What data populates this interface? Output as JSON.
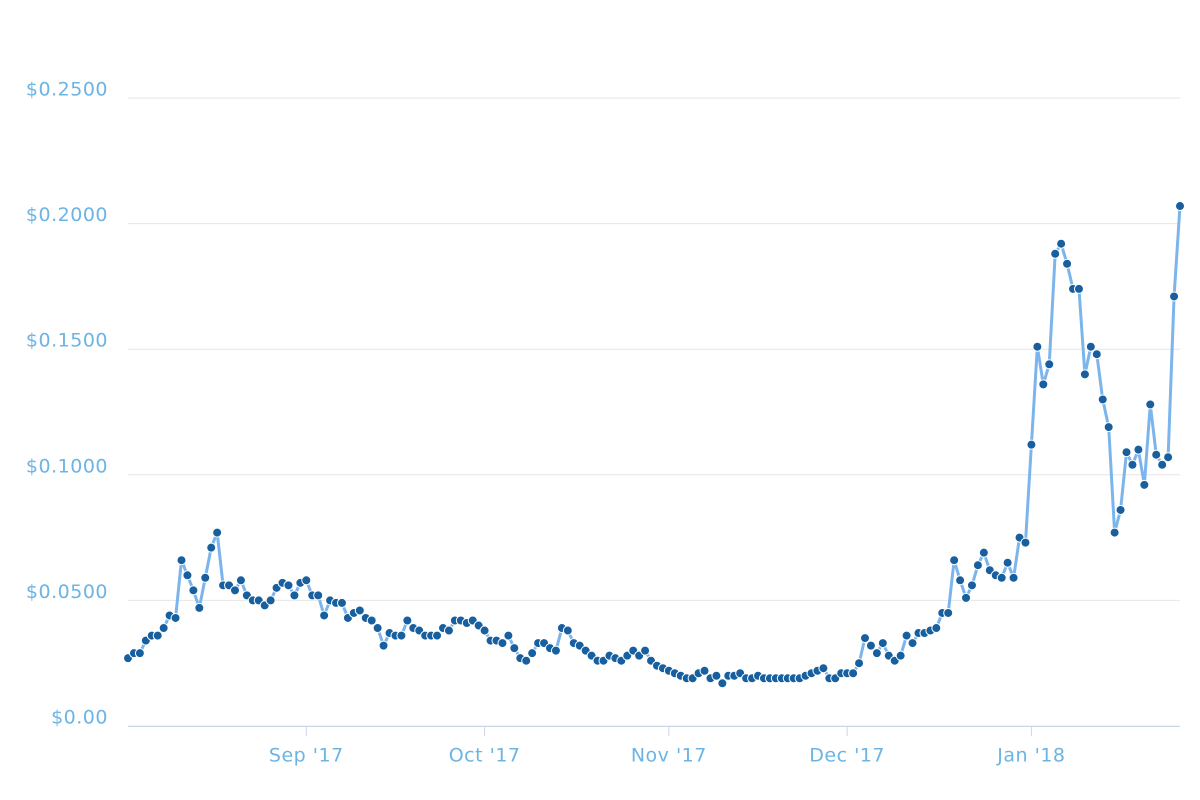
{
  "chart_data": {
    "type": "line",
    "categories": [
      null,
      null,
      null,
      null,
      null,
      null,
      null,
      null,
      null,
      null,
      null,
      null,
      null,
      null,
      null,
      null,
      null,
      null,
      null,
      null,
      null,
      null,
      null,
      null,
      null,
      null,
      null,
      null,
      null,
      null,
      "Sep '17",
      null,
      null,
      null,
      null,
      null,
      null,
      null,
      null,
      null,
      null,
      null,
      null,
      null,
      null,
      null,
      null,
      null,
      null,
      null,
      null,
      null,
      null,
      null,
      null,
      null,
      null,
      null,
      null,
      null,
      "Oct '17",
      null,
      null,
      null,
      null,
      null,
      null,
      null,
      null,
      null,
      null,
      null,
      null,
      null,
      null,
      null,
      null,
      null,
      null,
      null,
      null,
      null,
      null,
      null,
      null,
      null,
      null,
      null,
      null,
      null,
      null,
      "Nov '17",
      null,
      null,
      null,
      null,
      null,
      null,
      null,
      null,
      null,
      null,
      null,
      null,
      null,
      null,
      null,
      null,
      null,
      null,
      null,
      null,
      null,
      null,
      null,
      null,
      null,
      null,
      null,
      null,
      null,
      "Dec '17",
      null,
      null,
      null,
      null,
      null,
      null,
      null,
      null,
      null,
      null,
      null,
      null,
      null,
      null,
      null,
      null,
      null,
      null,
      null,
      null,
      null,
      null,
      null,
      null,
      null,
      null,
      null,
      null,
      null,
      null,
      "Jan '18",
      null,
      null,
      null,
      null,
      null,
      null,
      null,
      null,
      null,
      null,
      null,
      null,
      null,
      null,
      null,
      null,
      null,
      null,
      null,
      null,
      null,
      null,
      null,
      null,
      null
    ],
    "values": [
      0.027,
      0.029,
      0.029,
      0.034,
      0.036,
      0.036,
      0.039,
      0.044,
      0.043,
      0.066,
      0.06,
      0.054,
      0.047,
      0.059,
      0.071,
      0.077,
      0.056,
      0.056,
      0.054,
      0.058,
      0.052,
      0.05,
      0.05,
      0.048,
      0.05,
      0.055,
      0.057,
      0.056,
      0.052,
      0.057,
      0.058,
      0.052,
      0.052,
      0.044,
      0.05,
      0.049,
      0.049,
      0.043,
      0.045,
      0.046,
      0.043,
      0.042,
      0.039,
      0.032,
      0.037,
      0.036,
      0.036,
      0.042,
      0.039,
      0.038,
      0.036,
      0.036,
      0.036,
      0.039,
      0.038,
      0.042,
      0.042,
      0.041,
      0.042,
      0.04,
      0.038,
      0.034,
      0.034,
      0.033,
      0.036,
      0.031,
      0.027,
      0.026,
      0.029,
      0.033,
      0.033,
      0.031,
      0.03,
      0.039,
      0.038,
      0.033,
      0.032,
      0.03,
      0.028,
      0.026,
      0.026,
      0.028,
      0.027,
      0.026,
      0.028,
      0.03,
      0.028,
      0.03,
      0.026,
      0.024,
      0.023,
      0.022,
      0.021,
      0.02,
      0.019,
      0.019,
      0.021,
      0.022,
      0.019,
      0.02,
      0.017,
      0.02,
      0.02,
      0.021,
      0.019,
      0.019,
      0.02,
      0.019,
      0.019,
      0.019,
      0.019,
      0.019,
      0.019,
      0.019,
      0.02,
      0.021,
      0.022,
      0.023,
      0.019,
      0.019,
      0.021,
      0.021,
      0.021,
      0.025,
      0.035,
      0.032,
      0.029,
      0.033,
      0.028,
      0.026,
      0.028,
      0.036,
      0.033,
      0.037,
      0.037,
      0.038,
      0.039,
      0.045,
      0.045,
      0.066,
      0.058,
      0.051,
      0.056,
      0.064,
      0.069,
      0.062,
      0.06,
      0.059,
      0.065,
      0.059,
      0.075,
      0.073,
      0.112,
      0.151,
      0.136,
      0.144,
      0.188,
      0.192,
      0.184,
      0.174,
      0.174,
      0.14,
      0.151,
      0.148,
      0.13,
      0.119,
      0.077,
      0.086,
      0.109,
      0.104,
      0.11,
      0.096,
      0.128,
      0.108,
      0.104,
      0.107,
      0.171,
      0.207
    ],
    "line_color": "#7cb5ec",
    "marker_color": "#175f9e",
    "ylim": [
      0,
      0.25
    ],
    "yticks": [
      {
        "value": 0,
        "label": "$0.00"
      },
      {
        "value": 0.05,
        "label": "$0.0500"
      },
      {
        "value": 0.1,
        "label": "$0.1000"
      },
      {
        "value": 0.15,
        "label": "$0.1500"
      },
      {
        "value": 0.2,
        "label": "$0.2000"
      },
      {
        "value": 0.25,
        "label": "$0.2500"
      }
    ],
    "grid": true
  }
}
